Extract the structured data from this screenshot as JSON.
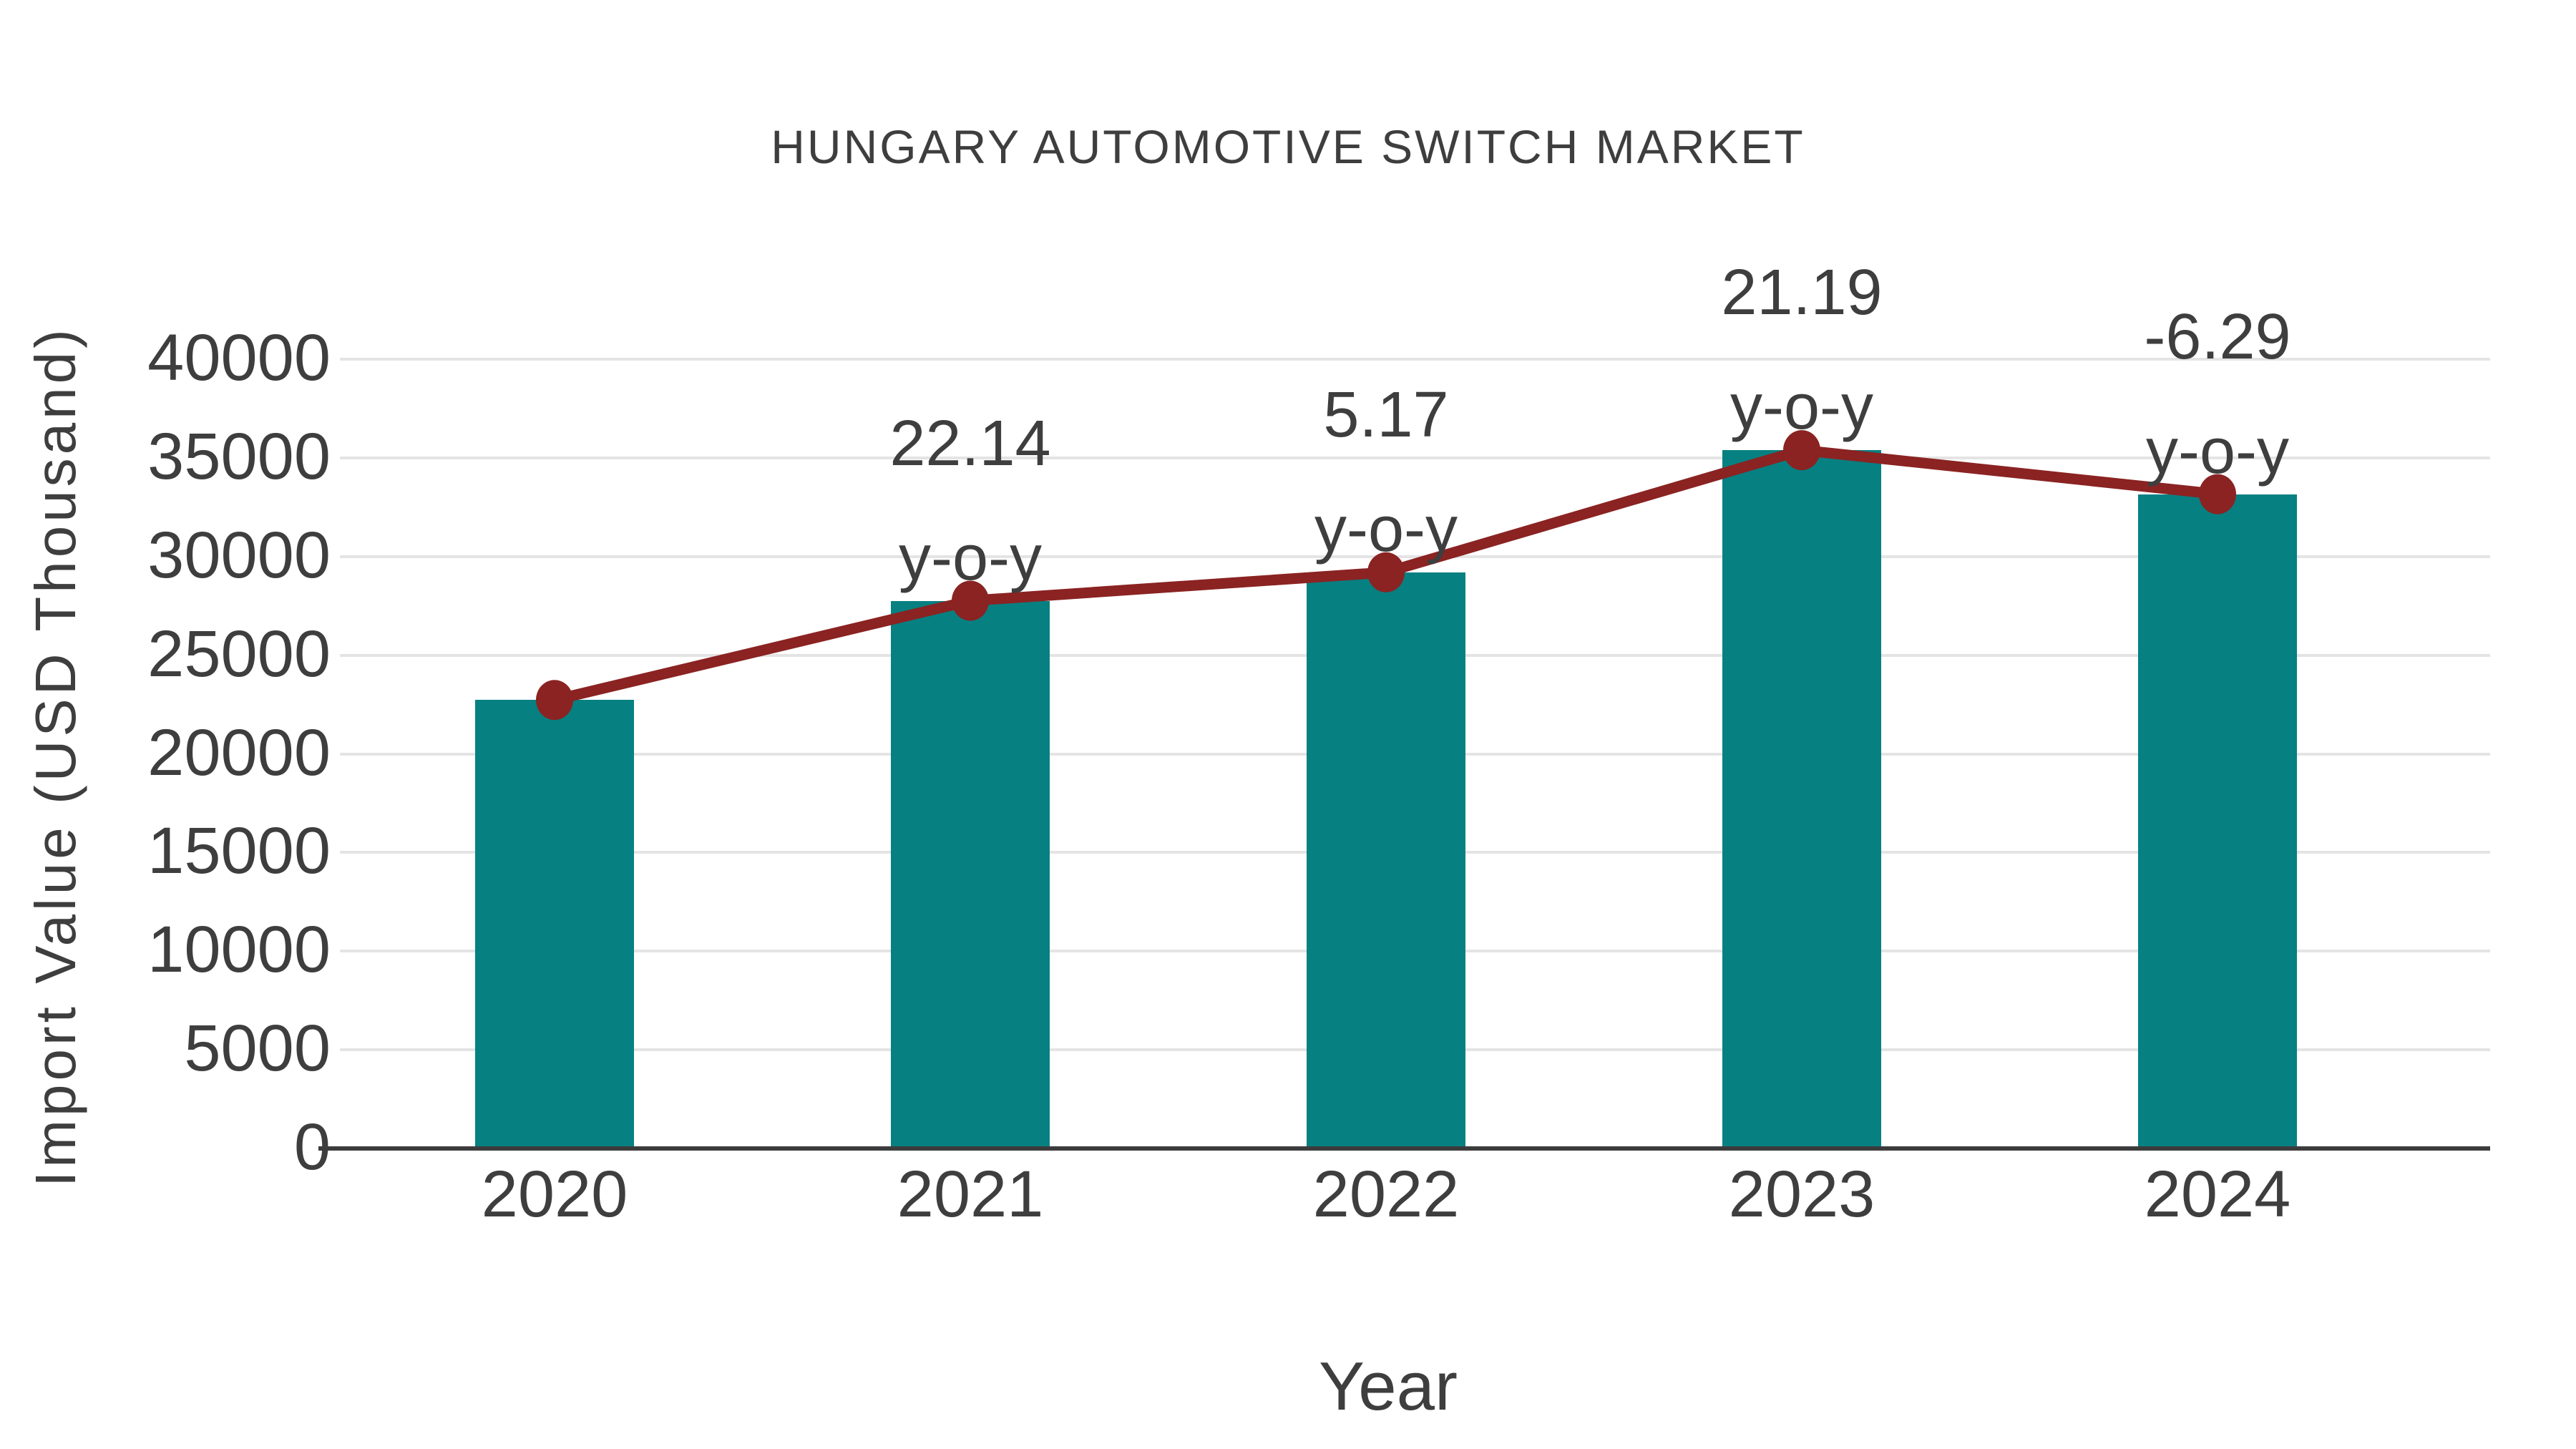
{
  "chart_data": {
    "type": "bar",
    "title": "HUNGARY AUTOMOTIVE SWITCH MARKET",
    "xlabel": "Year",
    "ylabel": "Import Value (USD Thousand)",
    "categories": [
      "2020",
      "2021",
      "2022",
      "2023",
      "2024"
    ],
    "series": [
      {
        "name": "Import Value bars",
        "type": "bar",
        "values": [
          22730,
          27760,
          29200,
          35390,
          33160
        ]
      },
      {
        "name": "Import Value trend line",
        "type": "line",
        "values": [
          22730,
          27760,
          29200,
          35390,
          33160
        ]
      }
    ],
    "annotations": [
      {
        "category": "2021",
        "line1": "22.14",
        "line2": "y-o-y"
      },
      {
        "category": "2022",
        "line1": "5.17",
        "line2": "y-o-y"
      },
      {
        "category": "2023",
        "line1": "21.19",
        "line2": "y-o-y"
      },
      {
        "category": "2024",
        "line1": "-6.29",
        "line2": "y-o-y"
      }
    ],
    "y_ticks": [
      0,
      5000,
      10000,
      15000,
      20000,
      25000,
      30000,
      35000,
      40000
    ],
    "ylim": [
      0,
      40000
    ],
    "grid": "horizontal",
    "legend": "none",
    "colors": {
      "bar": "#078082",
      "line": "#8a2322",
      "marker": "#8a2322",
      "text": "#3e3e3e",
      "gridline": "#e4e4e4",
      "axis": "#3c3c3c",
      "background": "#ffffff"
    }
  }
}
